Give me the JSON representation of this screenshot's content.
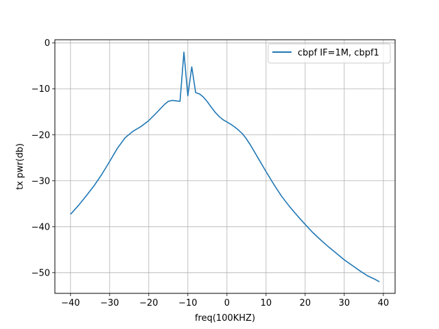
{
  "chart_data": {
    "type": "line",
    "title": "",
    "xlabel": "freq(100KHZ)",
    "ylabel": "tx pwr(db)",
    "xlim": [
      -44,
      43
    ],
    "ylim": [
      -54.5,
      0.7
    ],
    "xticks": [
      -40,
      -30,
      -20,
      -10,
      0,
      10,
      20,
      30,
      40
    ],
    "yticks": [
      0,
      -10,
      -20,
      -30,
      -40,
      -50
    ],
    "grid": true,
    "legend_position": "top-right",
    "line_color": "#1f77b4",
    "series": [
      {
        "name": "cbpf IF=1M, cbpf1",
        "x": [
          -40,
          -38,
          -36,
          -34,
          -32,
          -30,
          -28,
          -26,
          -24,
          -22,
          -20,
          -18,
          -16,
          -15,
          -14,
          -13,
          -12,
          -11,
          -10,
          -9,
          -8,
          -7,
          -6,
          -5,
          -4,
          -3,
          -2,
          -1,
          0,
          1,
          2,
          3,
          4,
          5,
          6,
          8,
          10,
          12,
          14,
          16,
          18,
          20,
          22,
          24,
          26,
          28,
          30,
          32,
          34,
          36,
          38,
          39
        ],
        "values": [
          -37.3,
          -35.4,
          -33.3,
          -31.1,
          -28.6,
          -25.8,
          -22.9,
          -20.6,
          -19.2,
          -18.2,
          -16.9,
          -15.2,
          -13.4,
          -12.7,
          -12.5,
          -12.6,
          -12.7,
          -2.0,
          -11.5,
          -5.2,
          -10.8,
          -11.1,
          -11.8,
          -12.8,
          -14.0,
          -15.1,
          -16.0,
          -16.7,
          -17.2,
          -17.7,
          -18.3,
          -19.0,
          -19.8,
          -20.9,
          -22.2,
          -25.1,
          -28.0,
          -30.8,
          -33.4,
          -35.6,
          -37.6,
          -39.5,
          -41.3,
          -42.9,
          -44.4,
          -45.8,
          -47.2,
          -48.4,
          -49.6,
          -50.7,
          -51.5,
          -52.0
        ]
      }
    ]
  }
}
